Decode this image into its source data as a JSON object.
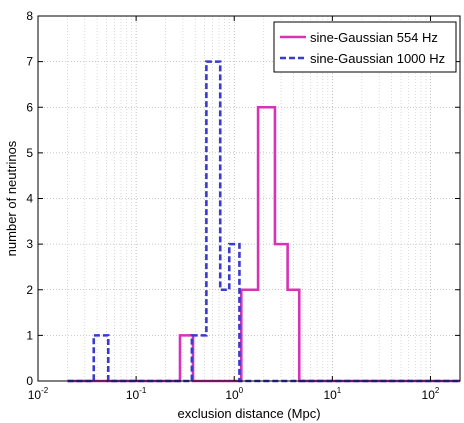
{
  "chart_data": {
    "type": "line",
    "step_histogram": true,
    "xlabel": "exclusion distance (Mpc)",
    "ylabel": "number of neutrinos",
    "x_scale": "log",
    "xlim": [
      0.01,
      200
    ],
    "ylim": [
      0,
      8
    ],
    "x_ticks": [
      {
        "value": 0.01,
        "base": "10",
        "exp": "-2"
      },
      {
        "value": 0.1,
        "base": "10",
        "exp": "-1"
      },
      {
        "value": 1,
        "base": "10",
        "exp": "0"
      },
      {
        "value": 10,
        "base": "10",
        "exp": "1"
      },
      {
        "value": 100,
        "base": "10",
        "exp": "2"
      }
    ],
    "y_ticks": [
      "0",
      "1",
      "2",
      "3",
      "4",
      "5",
      "6",
      "7",
      "8"
    ],
    "grid": true,
    "legend_position": "top-right",
    "series": [
      {
        "name": "sine-Gaussian 554 Hz",
        "color": "#d633b5",
        "dash": "solid",
        "x": [
          0.02,
          0.28,
          0.28,
          0.38,
          0.38,
          1.18,
          1.18,
          1.75,
          1.75,
          2.6,
          2.6,
          3.5,
          3.5,
          4.6,
          4.6,
          200
        ],
        "y": [
          0,
          0,
          1,
          1,
          0,
          0,
          2,
          2,
          6,
          6,
          3,
          3,
          2,
          2,
          0,
          0
        ]
      },
      {
        "name": "sine-Gaussian 1000 Hz",
        "color": "#3a3ad0",
        "dash": "dashed",
        "x": [
          0.02,
          0.037,
          0.037,
          0.052,
          0.052,
          0.37,
          0.37,
          0.52,
          0.52,
          0.72,
          0.72,
          0.89,
          0.89,
          1.13,
          1.13,
          200
        ],
        "y": [
          0,
          0,
          1,
          1,
          0,
          0,
          1,
          1,
          7,
          7,
          2,
          2,
          3,
          3,
          0,
          0
        ]
      }
    ]
  }
}
